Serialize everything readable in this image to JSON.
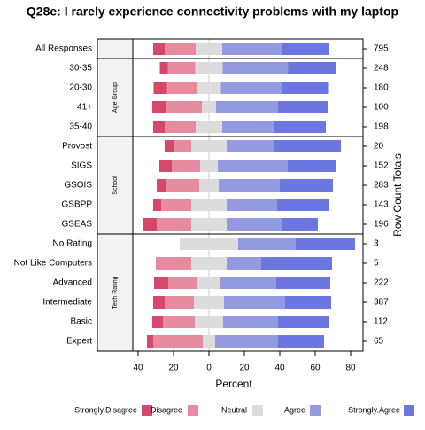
{
  "chart_data": {
    "type": "diverging_bar",
    "title": "Q28e: I rarely experience connectivity problems with my laptop",
    "xlabel": "Percent",
    "y2label": "Row Count Totals",
    "xlim": [
      -43,
      87
    ],
    "xticks": [
      {
        "value": -40,
        "label": "40"
      },
      {
        "value": -20,
        "label": "20"
      },
      0,
      20,
      40,
      60,
      80
    ],
    "legend": [
      {
        "name": "Strongly.Disagree",
        "color": "#d6476e"
      },
      {
        "name": "Disagree",
        "color": "#e68ba0"
      },
      {
        "name": "Neutral",
        "color": "#dcdcdc"
      },
      {
        "name": "Agree",
        "color": "#939ae0"
      },
      {
        "name": "Strongly.Agree",
        "color": "#6b76e0"
      }
    ],
    "panels": [
      {
        "categories": [
          "All Responses"
        ],
        "row_totals": [
          795
        ],
        "series": [
          {
            "values": [
              6.5
            ]
          },
          {
            "values": [
              17.5
            ]
          },
          {
            "values": [
              15
            ]
          },
          {
            "values": [
              33.5
            ]
          },
          {
            "values": [
              27
            ]
          }
        ]
      },
      {
        "label": "Age Group",
        "categories": [
          "30-35",
          "20-30",
          "41+",
          "35-40"
        ],
        "row_totals": [
          248,
          180,
          100,
          198
        ],
        "series": [
          {
            "values": [
              4.5,
              7.5,
              8,
              6.5
            ]
          },
          {
            "values": [
              15.5,
              17,
              20,
              17.5
            ]
          },
          {
            "values": [
              15.5,
              13.5,
              8,
              15
            ]
          },
          {
            "values": [
              37,
              34.5,
              35,
              29.5
            ]
          },
          {
            "values": [
              27,
              26.5,
              28,
              29
            ]
          }
        ]
      },
      {
        "label": "School",
        "categories": [
          "Provost",
          "SIGS",
          "GSOIS",
          "GSBPP",
          "GSEAS"
        ],
        "row_totals": [
          20,
          152,
          283,
          143,
          196
        ],
        "series": [
          {
            "values": [
              5.5,
              7,
              5.5,
              4.5,
              8
            ]
          },
          {
            "values": [
              9.5,
              16,
              18.5,
              17,
              19.5
            ]
          },
          {
            "values": [
              20,
              10,
              11,
              20,
              20
            ]
          },
          {
            "values": [
              27,
              39.5,
              34.5,
              28.5,
              31
            ]
          },
          {
            "values": [
              37.5,
              27,
              30,
              29.5,
              20.5
            ]
          }
        ]
      },
      {
        "label": "Tech Rating",
        "categories": [
          "No Rating",
          "Not Like Computers",
          "Advanced",
          "Intermediate",
          "Basic",
          "Expert"
        ],
        "row_totals": [
          3,
          5,
          222,
          387,
          112,
          65
        ],
        "series": [
          {
            "values": [
              0,
              0,
              8,
              6.5,
              6,
              3.5
            ]
          },
          {
            "values": [
              0,
              20,
              16.5,
              16.5,
              18,
              28
            ]
          },
          {
            "values": [
              33,
              20,
              13,
              17,
              16,
              7
            ]
          },
          {
            "values": [
              32.5,
              19.5,
              31.5,
              34.5,
              31,
              35.5
            ]
          },
          {
            "values": [
              33.5,
              40,
              30.5,
              26,
              29,
              26
            ]
          }
        ]
      }
    ]
  }
}
